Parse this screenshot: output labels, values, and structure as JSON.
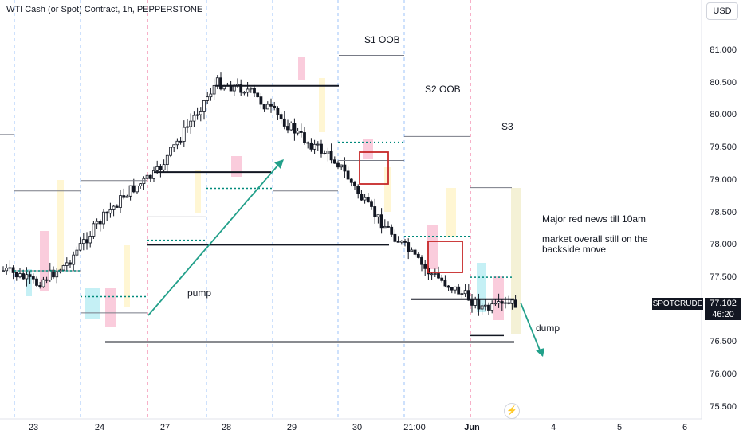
{
  "header": {
    "title": "WTI Cash (or Spot) Contract, 1h, PEPPERSTONE",
    "currency": "USD"
  },
  "price_tag": {
    "symbol": "SPOTCRUDE",
    "price": "77.102",
    "countdown": "46:20"
  },
  "annotations": {
    "s1": "S1 OOB",
    "s2": "S2 OOB",
    "s3": "S3",
    "pump": "pump",
    "dump": "dump",
    "news1": "Major red news till 10am",
    "news2": "market overall still on the",
    "news3": "backside move"
  },
  "colors": {
    "up": "#089981",
    "down": "#f23645",
    "candle": "#131722",
    "arrow": "#22a08a",
    "box": "#c62828"
  },
  "chart_data": {
    "type": "candlestick",
    "title": "WTI Cash (or Spot) Contract, 1h, PEPPERSTONE",
    "y_axis": {
      "ticks": [
        "81.000",
        "80.500",
        "80.000",
        "79.500",
        "79.000",
        "78.500",
        "78.000",
        "77.500",
        "77.000",
        "76.500",
        "76.000",
        "75.500"
      ],
      "min": 75.4,
      "max": 81.3
    },
    "x_axis": {
      "ticks": [
        "23",
        "24",
        "27",
        "28",
        "29",
        "30",
        "21:00",
        "Jun",
        "4",
        "5",
        "6"
      ]
    },
    "series": [
      {
        "values": [
          77.6,
          77.4,
          77.7,
          78.3,
          78.8,
          79.1,
          79.8,
          80.5,
          80.4,
          80.0,
          79.6,
          79.3,
          78.6,
          78.1,
          77.6,
          77.3,
          77.0,
          77.1
        ]
      }
    ],
    "levels": [
      81.0,
      80.45,
      79.3,
      78.0,
      77.2,
      76.5
    ],
    "last_price": 77.102
  }
}
